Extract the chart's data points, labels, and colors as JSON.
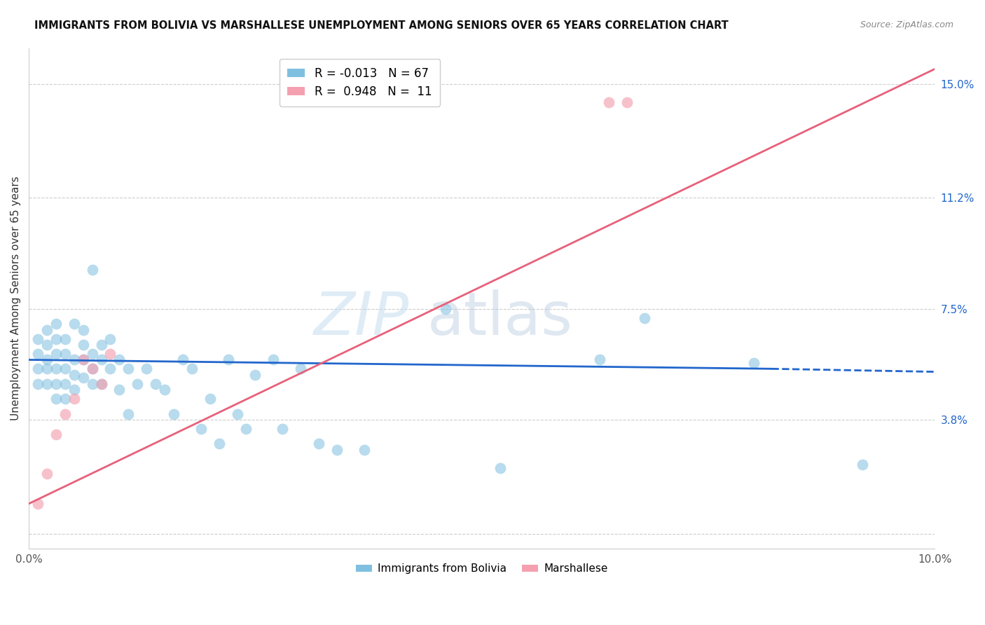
{
  "title": "IMMIGRANTS FROM BOLIVIA VS MARSHALLESE UNEMPLOYMENT AMONG SENIORS OVER 65 YEARS CORRELATION CHART",
  "source": "Source: ZipAtlas.com",
  "ylabel": "Unemployment Among Seniors over 65 years",
  "xlim": [
    0.0,
    0.1
  ],
  "ylim": [
    -0.005,
    0.162
  ],
  "yticks_right": [
    0.0,
    0.038,
    0.075,
    0.112,
    0.15
  ],
  "yticks_right_labels": [
    "",
    "3.8%",
    "7.5%",
    "11.2%",
    "15.0%"
  ],
  "legend_blue_r": "-0.013",
  "legend_blue_n": "67",
  "legend_pink_r": "0.948",
  "legend_pink_n": "11",
  "blue_color": "#7fbfdf",
  "pink_color": "#f4a0b0",
  "blue_line_color": "#2266cc",
  "pink_line_color": "#e8607a",
  "watermark_zip": "ZIP",
  "watermark_atlas": "atlas",
  "bolivia_x": [
    0.001,
    0.001,
    0.001,
    0.001,
    0.002,
    0.002,
    0.002,
    0.002,
    0.002,
    0.003,
    0.003,
    0.003,
    0.003,
    0.003,
    0.003,
    0.004,
    0.004,
    0.004,
    0.004,
    0.004,
    0.005,
    0.005,
    0.005,
    0.005,
    0.006,
    0.006,
    0.006,
    0.006,
    0.007,
    0.007,
    0.007,
    0.007,
    0.008,
    0.008,
    0.008,
    0.009,
    0.009,
    0.01,
    0.01,
    0.011,
    0.011,
    0.012,
    0.013,
    0.014,
    0.015,
    0.016,
    0.017,
    0.018,
    0.019,
    0.02,
    0.021,
    0.022,
    0.023,
    0.024,
    0.025,
    0.027,
    0.028,
    0.03,
    0.032,
    0.034,
    0.037,
    0.046,
    0.052,
    0.063,
    0.068,
    0.08,
    0.092
  ],
  "bolivia_y": [
    0.05,
    0.055,
    0.06,
    0.065,
    0.05,
    0.055,
    0.058,
    0.063,
    0.068,
    0.045,
    0.05,
    0.055,
    0.06,
    0.065,
    0.07,
    0.045,
    0.05,
    0.055,
    0.06,
    0.065,
    0.048,
    0.053,
    0.058,
    0.07,
    0.052,
    0.058,
    0.063,
    0.068,
    0.05,
    0.055,
    0.06,
    0.088,
    0.05,
    0.058,
    0.063,
    0.055,
    0.065,
    0.048,
    0.058,
    0.04,
    0.055,
    0.05,
    0.055,
    0.05,
    0.048,
    0.04,
    0.058,
    0.055,
    0.035,
    0.045,
    0.03,
    0.058,
    0.04,
    0.035,
    0.053,
    0.058,
    0.035,
    0.055,
    0.03,
    0.028,
    0.028,
    0.075,
    0.022,
    0.058,
    0.072,
    0.057,
    0.023
  ],
  "marshallese_x": [
    0.001,
    0.002,
    0.003,
    0.004,
    0.005,
    0.006,
    0.007,
    0.008,
    0.009,
    0.064,
    0.066
  ],
  "marshallese_y": [
    0.01,
    0.02,
    0.033,
    0.04,
    0.045,
    0.058,
    0.055,
    0.05,
    0.06,
    0.144,
    0.144
  ],
  "blue_line_x": [
    0.0,
    0.082,
    0.1
  ],
  "blue_line_y": [
    0.058,
    0.055,
    0.054
  ],
  "blue_line_solid_end": 0.082,
  "pink_line_x0": 0.0,
  "pink_line_y0": 0.01,
  "pink_line_x1": 0.1,
  "pink_line_y1": 0.155,
  "grid_yticks": [
    0.0,
    0.038,
    0.075,
    0.112,
    0.15
  ]
}
